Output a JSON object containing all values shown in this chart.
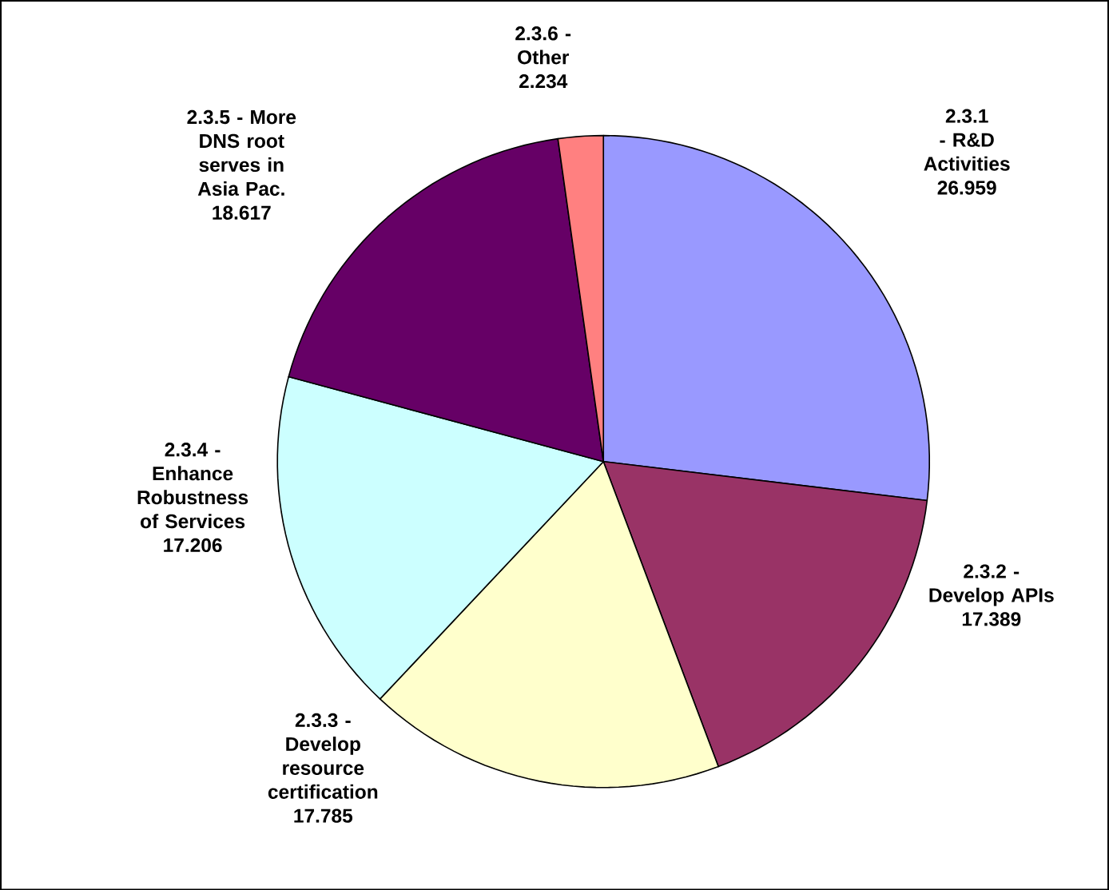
{
  "chart_data": {
    "type": "pie",
    "categories": [
      "2.3.1 - R&D Activities",
      "2.3.2 - Develop APIs",
      "2.3.3 - Develop resource certification",
      "2.3.4 - Enhance Robustness of Services",
      "2.3.5 - More DNS root serves in Asia Pac.",
      "2.3.6 - Other"
    ],
    "values": [
      26.959,
      17.389,
      17.785,
      17.206,
      18.617,
      2.234
    ],
    "colors": [
      "#9999ff",
      "#993366",
      "#ffffcc",
      "#ccffff",
      "#660066",
      "#ff8080"
    ],
    "data_labels": true
  }
}
